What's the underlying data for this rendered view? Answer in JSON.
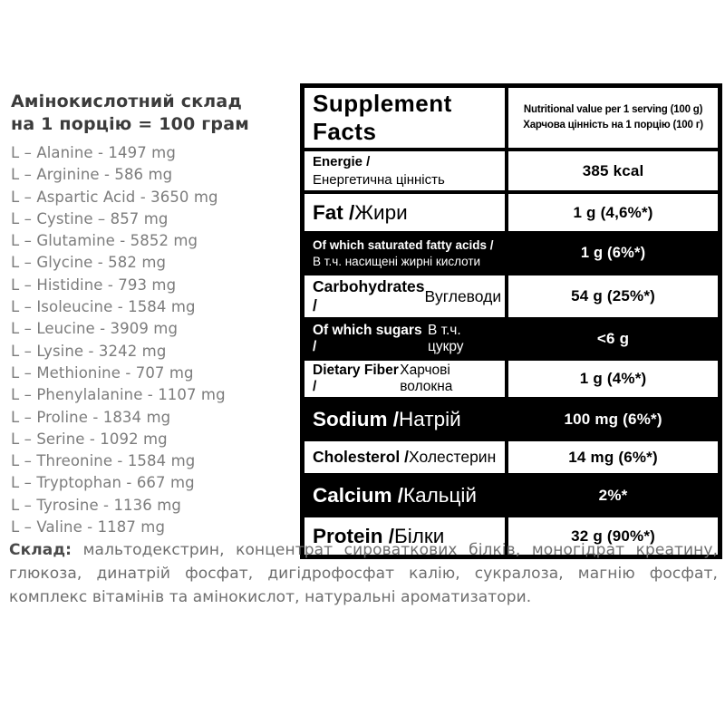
{
  "colors": {
    "table_background": "#000000",
    "table_cell_white": "#ffffff",
    "inverse_row_text": "#ffffff",
    "amino_title_text": "#3b3b3b",
    "amino_list_text": "#7c7c7c",
    "ingredients_text": "#6e6e6e"
  },
  "amino_section": {
    "title_line1": "Амінокислотний склад",
    "title_line2": "на 1 порцію = 100 грам",
    "items": [
      "L – Alanine - 1497 mg",
      "L – Arginine - 586 mg",
      "L – Aspartic Acid - 3650 mg",
      "L – Cystine – 857 mg",
      "L – Glutamine - 5852 mg",
      "L – Glycine - 582 mg",
      "L – Histidine - 793 mg",
      "L – Isoleucine - 1584 mg",
      "L – Leucine - 3909 mg",
      "L – Lysine - 3242 mg",
      "L – Methionine - 707 mg",
      "L – Phenylalanine - 1107 mg",
      "L – Proline - 1834 mg",
      "L – Serine - 1092 mg",
      "L – Threonine - 1584 mg",
      "L – Tryptophan - 667 mg",
      "L – Tyrosine - 1136 mg",
      "L – Valine - 1187 mg"
    ]
  },
  "facts_table": {
    "title": "Supplement Facts",
    "subtitle_line1": "Nutritional value per 1 serving (100 g)",
    "subtitle_line2": "Харчова цінність на 1 порцію (100 г)",
    "rows": [
      {
        "en": "Energie /",
        "ua": "Енергетична цінність",
        "value": "385 kcal",
        "bg": "white",
        "layout": "stacked",
        "size": "md"
      },
      {
        "en": "Fat",
        "ua": "Жири",
        "value": "1 g (4,6%*)",
        "bg": "white",
        "layout": "inline",
        "size": "xl"
      },
      {
        "en": "Of which saturated fatty acids /",
        "ua": "В т.ч. насищені жирні кислоти",
        "value": "1 g (6%*)",
        "bg": "black",
        "layout": "stacked",
        "size": "sm"
      },
      {
        "en": "Carbohydrates",
        "ua": "Вуглеводи",
        "value": "54 g (25%*)",
        "bg": "white",
        "layout": "inline",
        "size": "lg"
      },
      {
        "en": "Of which sugars",
        "ua": "В т.ч. цукру",
        "value": "<6 g",
        "bg": "black",
        "layout": "inline",
        "size": "md"
      },
      {
        "en": "Dietary Fiber",
        "ua": "Харчові волокна",
        "value": "1 g (4%*)",
        "bg": "white",
        "layout": "inline",
        "size": "md"
      },
      {
        "en": "Sodium",
        "ua": "Натрій",
        "value": "100 mg (6%*)",
        "bg": "black",
        "layout": "inline",
        "size": "xl"
      },
      {
        "en": "Cholesterol",
        "ua": "Холестерин",
        "value": "14 mg (6%*)",
        "bg": "white",
        "layout": "inline",
        "size": "lg"
      },
      {
        "en": "Calcium",
        "ua": "Кальцій",
        "value": "2%*",
        "bg": "black",
        "layout": "inline",
        "size": "xl"
      },
      {
        "en": "Protein",
        "ua": "Білки",
        "value": "32 g (90%*)",
        "bg": "white",
        "layout": "inline",
        "size": "xl"
      }
    ]
  },
  "ingredients": {
    "label": "Склад:",
    "text": "мальтодекстрин, концентрат сироваткових білків, моногідрат креатину, глюкоза, динатрій фосфат, дигідрофосфат калію, сукралоза, магнію фосфат, комплекс вітамінів та амінокислот, натуральні ароматизатори."
  }
}
